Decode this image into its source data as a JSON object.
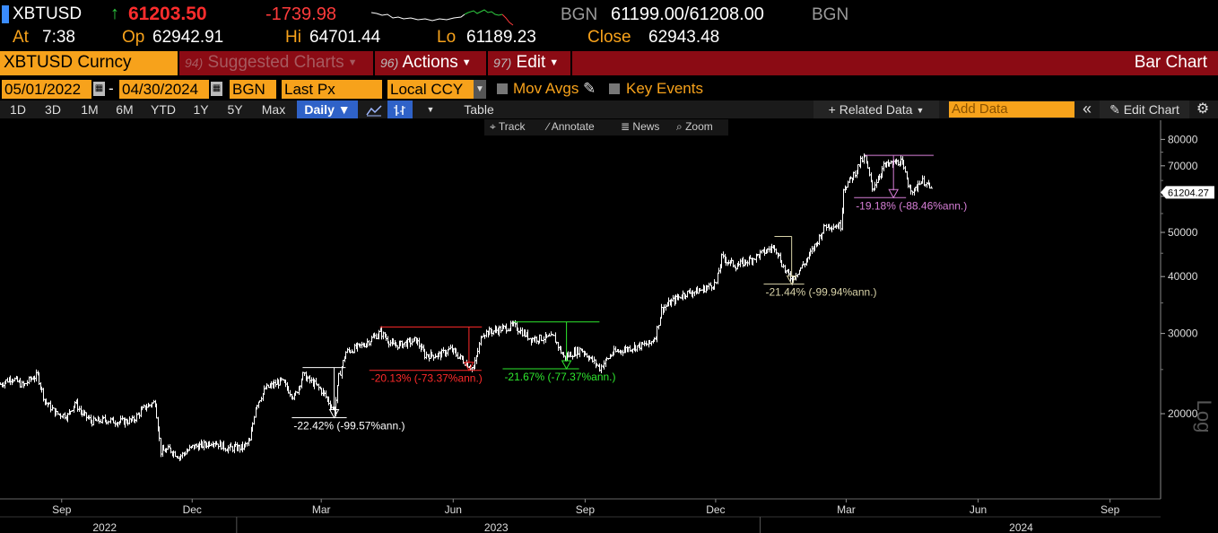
{
  "quote": {
    "ticker": "XBTUSD",
    "arrow": "↑",
    "last": "61203.50",
    "change": "-1739.98",
    "bid_source": "BGN",
    "bid_ask": "61199.00/61208.00",
    "ask_source": "BGN"
  },
  "stats": {
    "at_label": "At",
    "at_value": "7:38",
    "open_label": "Op",
    "open_value": "62942.91",
    "high_label": "Hi",
    "high_value": "64701.44",
    "low_label": "Lo",
    "low_value": "61189.23",
    "close_label": "Close",
    "close_value": "62943.48"
  },
  "menubar": {
    "security": "XBTUSD Curncy",
    "suggested_num": "94)",
    "suggested_label": "Suggested Charts",
    "actions_num": "96)",
    "actions_label": "Actions",
    "edit_num": "97)",
    "edit_label": "Edit",
    "title": "Bar Chart"
  },
  "inputs": {
    "start_date": "05/01/2022",
    "dash": "-",
    "end_date": "04/30/2024",
    "source": "BGN",
    "field": "Last Px",
    "currency": "Local CCY",
    "mov_avgs": "Mov Avgs",
    "key_events": "Key Events"
  },
  "toolbar": {
    "ranges": [
      "1D",
      "3D",
      "1M",
      "6M",
      "YTD",
      "1Y",
      "5Y",
      "Max"
    ],
    "frequency": "Daily ▼",
    "table": "Table",
    "related": "+ Related Data",
    "add_data_placeholder": "Add Data",
    "collapse": "«",
    "edit_chart": "Edit Chart",
    "gear": "⚙"
  },
  "subtoolbar": {
    "track": "Track",
    "annotate": "Annotate",
    "news": "News",
    "zoom": "Zoom"
  },
  "colors": {
    "accent": "#f7a21b",
    "menubar": "#8b0b14",
    "price_down": "#ff2d2d",
    "selected": "#2f62c8",
    "ann_white": "#ffffff",
    "ann_red": "#ff2a2a",
    "ann_green": "#2ee82e",
    "ann_tan": "#d8d2a8",
    "ann_pink": "#d87fd8"
  },
  "chart_data": {
    "type": "line",
    "scale": "log",
    "ylabel": "Log",
    "ylim": [
      13000,
      85000
    ],
    "yticks": [
      20000,
      30000,
      40000,
      50000,
      60000,
      70000,
      80000
    ],
    "ytick_labels": [
      "20000",
      "30000",
      "40000",
      "50000",
      "",
      "70000",
      "80000"
    ],
    "last_label": "61204.27",
    "last_value": 61204.27,
    "x_month_labels": [
      {
        "date": "2022-09-01",
        "label": "Sep"
      },
      {
        "date": "2022-12-01",
        "label": "Dec"
      },
      {
        "date": "2023-03-01",
        "label": "Mar"
      },
      {
        "date": "2023-06-01",
        "label": "Jun"
      },
      {
        "date": "2023-09-01",
        "label": "Sep"
      },
      {
        "date": "2023-12-01",
        "label": "Dec"
      },
      {
        "date": "2024-03-01",
        "label": "Mar"
      },
      {
        "date": "2024-06-01",
        "label": "Jun"
      },
      {
        "date": "2024-09-01",
        "label": "Sep"
      }
    ],
    "x_year_labels": [
      {
        "date": "2022-10-01",
        "label": "2022"
      },
      {
        "date": "2023-07-01",
        "label": "2023"
      },
      {
        "date": "2024-07-01",
        "label": "2024"
      }
    ],
    "x_start": "2022-07-20",
    "x_end": "2024-10-05",
    "series": [
      {
        "values": [
          [
            "2022-07-20",
            23200
          ],
          [
            "2022-07-28",
            24000
          ],
          [
            "2022-08-05",
            23000
          ],
          [
            "2022-08-10",
            23800
          ],
          [
            "2022-08-15",
            24300
          ],
          [
            "2022-08-20",
            21300
          ],
          [
            "2022-08-28",
            20000
          ],
          [
            "2022-09-05",
            19800
          ],
          [
            "2022-09-10",
            21200
          ],
          [
            "2022-09-15",
            20000
          ],
          [
            "2022-09-22",
            19200
          ],
          [
            "2022-10-01",
            19400
          ],
          [
            "2022-10-10",
            19200
          ],
          [
            "2022-10-20",
            19300
          ],
          [
            "2022-10-29",
            20700
          ],
          [
            "2022-11-05",
            21200
          ],
          [
            "2022-11-09",
            16500
          ],
          [
            "2022-11-15",
            16700
          ],
          [
            "2022-11-22",
            16100
          ],
          [
            "2022-12-01",
            16900
          ],
          [
            "2022-12-10",
            17100
          ],
          [
            "2022-12-15",
            17400
          ],
          [
            "2022-12-25",
            16800
          ],
          [
            "2023-01-05",
            16850
          ],
          [
            "2023-01-10",
            17400
          ],
          [
            "2023-01-14",
            20800
          ],
          [
            "2023-01-21",
            22700
          ],
          [
            "2023-02-01",
            23600
          ],
          [
            "2023-02-10",
            21700
          ],
          [
            "2023-02-16",
            24300
          ],
          [
            "2023-02-25",
            23100
          ],
          [
            "2023-03-02",
            22300
          ],
          [
            "2023-03-10",
            20200
          ],
          [
            "2023-03-13",
            24100
          ],
          [
            "2023-03-18",
            27300
          ],
          [
            "2023-03-30",
            28300
          ],
          [
            "2023-04-11",
            30200
          ],
          [
            "2023-04-20",
            28200
          ],
          [
            "2023-04-26",
            28400
          ],
          [
            "2023-05-06",
            29000
          ],
          [
            "2023-05-12",
            26900
          ],
          [
            "2023-05-22",
            26900
          ],
          [
            "2023-05-30",
            27700
          ],
          [
            "2023-06-10",
            25800
          ],
          [
            "2023-06-15",
            25100
          ],
          [
            "2023-06-21",
            30000
          ],
          [
            "2023-07-01",
            30500
          ],
          [
            "2023-07-13",
            31200
          ],
          [
            "2023-07-25",
            29200
          ],
          [
            "2023-08-10",
            29400
          ],
          [
            "2023-08-17",
            26600
          ],
          [
            "2023-08-29",
            27700
          ],
          [
            "2023-09-11",
            25200
          ],
          [
            "2023-09-20",
            27200
          ],
          [
            "2023-10-02",
            27900
          ],
          [
            "2023-10-16",
            28500
          ],
          [
            "2023-10-20",
            29700
          ],
          [
            "2023-10-24",
            33900
          ],
          [
            "2023-11-01",
            35400
          ],
          [
            "2023-11-09",
            36700
          ],
          [
            "2023-11-20",
            37300
          ],
          [
            "2023-12-01",
            38700
          ],
          [
            "2023-12-05",
            44000
          ],
          [
            "2023-12-15",
            42200
          ],
          [
            "2023-12-25",
            43600
          ],
          [
            "2024-01-02",
            45000
          ],
          [
            "2024-01-11",
            46600
          ],
          [
            "2024-01-18",
            41300
          ],
          [
            "2024-01-23",
            39500
          ],
          [
            "2024-02-01",
            42900
          ],
          [
            "2024-02-09",
            47300
          ],
          [
            "2024-02-15",
            51800
          ],
          [
            "2024-02-26",
            51700
          ],
          [
            "2024-02-28",
            62500
          ],
          [
            "2024-03-05",
            66000
          ],
          [
            "2024-03-11",
            71500
          ],
          [
            "2024-03-14",
            73100
          ],
          [
            "2024-03-19",
            62200
          ],
          [
            "2024-03-27",
            69900
          ],
          [
            "2024-04-08",
            71600
          ],
          [
            "2024-04-13",
            64000
          ],
          [
            "2024-04-17",
            61300
          ],
          [
            "2024-04-21",
            64900
          ],
          [
            "2024-04-25",
            64500
          ],
          [
            "2024-04-30",
            61200
          ]
        ]
      }
    ],
    "annotations": [
      {
        "date_start": "2023-02-16",
        "date_end": "2023-03-18",
        "date_low": "2023-03-10",
        "high": 25250,
        "low": 19600,
        "label": "-22.42% (-99.57%ann.)",
        "color": "ann_white"
      },
      {
        "date_start": "2023-04-11",
        "date_end": "2023-06-21",
        "date_low": "2023-06-12",
        "high": 31000,
        "low": 24900,
        "label": "-20.13% (-73.37%ann.)",
        "color": "ann_red"
      },
      {
        "date_start": "2023-07-13",
        "date_end": "2023-09-11",
        "date_low": "2023-08-19",
        "high": 31800,
        "low": 25100,
        "label": "-21.67% (-77.37%ann.)",
        "color": "ann_green"
      },
      {
        "date_start": "2024-01-11",
        "date_end": "2024-01-23",
        "date_low": "2024-01-23",
        "high": 49000,
        "low": 38500,
        "label": "-21.44% (-99.94%ann.)",
        "color": "ann_tan"
      },
      {
        "date_start": "2024-03-14",
        "date_end": "2024-05-01",
        "date_low": "2024-04-03",
        "high": 73800,
        "low": 59600,
        "label": "-19.18% (-88.46%ann.)",
        "color": "ann_pink"
      }
    ]
  }
}
